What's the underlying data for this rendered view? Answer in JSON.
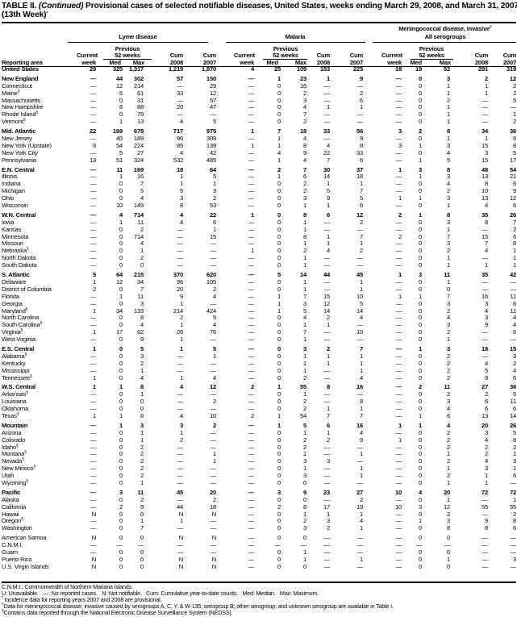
{
  "title": {
    "label": "TABLE II.",
    "continued": "(Continued)",
    "text": "Provisional cases of selected notifiable diseases, United States, weeks ending March 29, 2008, and March 31, 2007",
    "week": "(13th Week)",
    "week_mark": "*"
  },
  "header": {
    "diseases": {
      "lyme": "Lyme disease",
      "malaria": "Malaria",
      "mening_line1": "Meningococcal disease, invasive",
      "mening_mark": "†",
      "mening_line2": "All serogroups"
    },
    "previous": "Previous",
    "weeks52": "52 weeks",
    "current": "Current",
    "week": "week",
    "med": "Med",
    "max": "Max",
    "cum": "Cum",
    "y2008": "2008",
    "y2007": "2007",
    "reporting_area": "Reporting area"
  },
  "rows": [
    {
      "area": "United States",
      "bold": true,
      "v": [
        "29",
        "325",
        "1,317",
        "1,219",
        "1,870",
        "4",
        "25",
        "109",
        "153",
        "225",
        "18",
        "19",
        "52",
        "291",
        "319"
      ]
    },
    {
      "area": "New England",
      "bold": true,
      "gap": true,
      "v": [
        "—",
        "44",
        "302",
        "57",
        "150",
        "—",
        "1",
        "23",
        "1",
        "9",
        "—",
        "0",
        "3",
        "2",
        "12"
      ]
    },
    {
      "area": "Connecticut",
      "v": [
        "—",
        "12",
        "214",
        "—",
        "29",
        "—",
        "0",
        "16",
        "—",
        "—",
        "—",
        "0",
        "1",
        "1",
        "2"
      ]
    },
    {
      "area": "Maine",
      "fn": "§",
      "v": [
        "—",
        "6",
        "61",
        "33",
        "12",
        "—",
        "0",
        "2",
        "—",
        "2",
        "—",
        "0",
        "1",
        "1",
        "2"
      ]
    },
    {
      "area": "Massachusetts",
      "v": [
        "—",
        "0",
        "31",
        "—",
        "57",
        "—",
        "0",
        "3",
        "—",
        "6",
        "—",
        "0",
        "2",
        "—",
        "5"
      ]
    },
    {
      "area": "New Hampshire",
      "v": [
        "—",
        "8",
        "88",
        "20",
        "47",
        "—",
        "0",
        "4",
        "1",
        "1",
        "—",
        "0",
        "1",
        "—",
        "—"
      ]
    },
    {
      "area": "Rhode Island",
      "fn": "§",
      "v": [
        "—",
        "0",
        "79",
        "—",
        "—",
        "—",
        "0",
        "7",
        "—",
        "—",
        "—",
        "0",
        "1",
        "—",
        "1"
      ]
    },
    {
      "area": "Vermont",
      "fn": "§",
      "v": [
        "—",
        "1",
        "13",
        "4",
        "5",
        "—",
        "0",
        "2",
        "—",
        "—",
        "—",
        "0",
        "1",
        "—",
        "2"
      ]
    },
    {
      "area": "Mid. Atlantic",
      "bold": true,
      "gap": true,
      "v": [
        "22",
        "169",
        "678",
        "717",
        "975",
        "1",
        "7",
        "18",
        "33",
        "56",
        "3",
        "2",
        "8",
        "34",
        "36"
      ]
    },
    {
      "area": "New Jersey",
      "v": [
        "—",
        "40",
        "189",
        "96",
        "309",
        "—",
        "1",
        "4",
        "—",
        "9",
        "—",
        "0",
        "1",
        "1",
        "6"
      ]
    },
    {
      "area": "New York (Upstate)",
      "v": [
        "9",
        "54",
        "224",
        "85",
        "139",
        "1",
        "1",
        "8",
        "4",
        "8",
        "3",
        "1",
        "3",
        "15",
        "8"
      ]
    },
    {
      "area": "New York City",
      "v": [
        "—",
        "5",
        "27",
        "4",
        "42",
        "—",
        "4",
        "9",
        "22",
        "33",
        "—",
        "0",
        "4",
        "3",
        "5"
      ]
    },
    {
      "area": "Pennsylvania",
      "v": [
        "13",
        "51",
        "324",
        "532",
        "485",
        "—",
        "1",
        "4",
        "7",
        "6",
        "—",
        "1",
        "5",
        "15",
        "17"
      ]
    },
    {
      "area": "E.N. Central",
      "bold": true,
      "gap": true,
      "v": [
        "—",
        "11",
        "169",
        "18",
        "64",
        "—",
        "2",
        "7",
        "30",
        "37",
        "1",
        "3",
        "8",
        "48",
        "54"
      ]
    },
    {
      "area": "Illinois",
      "v": [
        "—",
        "1",
        "16",
        "1",
        "5",
        "—",
        "1",
        "6",
        "14",
        "18",
        "—",
        "1",
        "3",
        "13",
        "21"
      ]
    },
    {
      "area": "Indiana",
      "v": [
        "—",
        "0",
        "7",
        "1",
        "1",
        "—",
        "0",
        "2",
        "1",
        "1",
        "—",
        "0",
        "4",
        "8",
        "6"
      ]
    },
    {
      "area": "Michigan",
      "v": [
        "—",
        "0",
        "5",
        "5",
        "3",
        "—",
        "0",
        "2",
        "5",
        "7",
        "—",
        "0",
        "2",
        "10",
        "9"
      ]
    },
    {
      "area": "Ohio",
      "v": [
        "—",
        "0",
        "4",
        "3",
        "2",
        "—",
        "0",
        "3",
        "9",
        "5",
        "1",
        "1",
        "3",
        "13",
        "12"
      ]
    },
    {
      "area": "Wisconsin",
      "v": [
        "—",
        "10",
        "149",
        "8",
        "53",
        "—",
        "0",
        "1",
        "1",
        "6",
        "—",
        "0",
        "1",
        "4",
        "6"
      ]
    },
    {
      "area": "W.N. Central",
      "bold": true,
      "gap": true,
      "v": [
        "—",
        "4",
        "714",
        "4",
        "22",
        "1",
        "0",
        "8",
        "6",
        "12",
        "2",
        "1",
        "8",
        "35",
        "26"
      ]
    },
    {
      "area": "Iowa",
      "v": [
        "—",
        "1",
        "11",
        "4",
        "6",
        "—",
        "0",
        "1",
        "—",
        "2",
        "—",
        "0",
        "3",
        "8",
        "7"
      ]
    },
    {
      "area": "Kansas",
      "v": [
        "—",
        "0",
        "2",
        "—",
        "1",
        "—",
        "0",
        "1",
        "—",
        "—",
        "—",
        "0",
        "1",
        "—",
        "2"
      ]
    },
    {
      "area": "Minnesota",
      "v": [
        "—",
        "0",
        "714",
        "—",
        "15",
        "—",
        "0",
        "8",
        "1",
        "7",
        "2",
        "0",
        "7",
        "15",
        "6"
      ]
    },
    {
      "area": "Missouri",
      "v": [
        "—",
        "0",
        "4",
        "—",
        "—",
        "—",
        "0",
        "1",
        "1",
        "1",
        "—",
        "0",
        "3",
        "7",
        "8"
      ]
    },
    {
      "area": "Nebraska",
      "fn": "§",
      "v": [
        "—",
        "0",
        "1",
        "—",
        "—",
        "1",
        "0",
        "2",
        "4",
        "2",
        "—",
        "0",
        "2",
        "4",
        "1"
      ]
    },
    {
      "area": "North Dakota",
      "v": [
        "—",
        "0",
        "2",
        "—",
        "—",
        "—",
        "0",
        "1",
        "—",
        "—",
        "—",
        "0",
        "1",
        "—",
        "1"
      ]
    },
    {
      "area": "South Dakota",
      "v": [
        "—",
        "0",
        "0",
        "—",
        "—",
        "—",
        "0",
        "1",
        "—",
        "—",
        "—",
        "0",
        "1",
        "1",
        "1"
      ]
    },
    {
      "area": "S. Atlantic",
      "bold": true,
      "gap": true,
      "v": [
        "5",
        "64",
        "215",
        "370",
        "620",
        "—",
        "5",
        "14",
        "44",
        "45",
        "1",
        "3",
        "11",
        "35",
        "42"
      ]
    },
    {
      "area": "Delaware",
      "v": [
        "1",
        "12",
        "34",
        "96",
        "105",
        "—",
        "0",
        "1",
        "—",
        "1",
        "—",
        "0",
        "1",
        "—",
        "—"
      ]
    },
    {
      "area": "District of Columbia",
      "v": [
        "2",
        "0",
        "7",
        "20",
        "2",
        "—",
        "0",
        "1",
        "—",
        "1",
        "—",
        "0",
        "0",
        "—",
        "—"
      ]
    },
    {
      "area": "Florida",
      "v": [
        "—",
        "1",
        "11",
        "9",
        "4",
        "—",
        "1",
        "7",
        "15",
        "10",
        "1",
        "1",
        "7",
        "16",
        "11"
      ]
    },
    {
      "area": "Georgia",
      "v": [
        "—",
        "0",
        "3",
        "1",
        "—",
        "—",
        "1",
        "3",
        "12",
        "5",
        "—",
        "0",
        "3",
        "3",
        "6"
      ]
    },
    {
      "area": "Maryland",
      "fn": "§",
      "v": [
        "1",
        "34",
        "133",
        "214",
        "424",
        "—",
        "1",
        "5",
        "14",
        "14",
        "—",
        "0",
        "2",
        "4",
        "11"
      ]
    },
    {
      "area": "North Carolina",
      "v": [
        "—",
        "0",
        "8",
        "2",
        "5",
        "—",
        "0",
        "4",
        "2",
        "4",
        "—",
        "0",
        "4",
        "3",
        "4"
      ]
    },
    {
      "area": "South Carolina",
      "fn": "§",
      "v": [
        "—",
        "0",
        "4",
        "1",
        "4",
        "—",
        "0",
        "1",
        "1",
        "—",
        "—",
        "0",
        "3",
        "9",
        "4"
      ]
    },
    {
      "area": "Virginia",
      "fn": "§",
      "v": [
        "1",
        "17",
        "62",
        "26",
        "76",
        "—",
        "0",
        "7",
        "—",
        "10",
        "—",
        "0",
        "2",
        "—",
        "6"
      ]
    },
    {
      "area": "West Virginia",
      "v": [
        "—",
        "0",
        "9",
        "1",
        "—",
        "—",
        "0",
        "1",
        "—",
        "—",
        "—",
        "0",
        "1",
        "—",
        "—"
      ]
    },
    {
      "area": "E.S. Central",
      "bold": true,
      "gap": true,
      "v": [
        "1",
        "0",
        "5",
        "1",
        "5",
        "—",
        "0",
        "3",
        "2",
        "7",
        "—",
        "1",
        "3",
        "18",
        "15"
      ]
    },
    {
      "area": "Alabama",
      "fn": "§",
      "v": [
        "—",
        "0",
        "3",
        "—",
        "1",
        "—",
        "0",
        "1",
        "1",
        "1",
        "—",
        "0",
        "2",
        "—",
        "3"
      ]
    },
    {
      "area": "Kentucky",
      "v": [
        "—",
        "0",
        "2",
        "—",
        "—",
        "—",
        "0",
        "1",
        "1",
        "1",
        "—",
        "0",
        "2",
        "4",
        "2"
      ]
    },
    {
      "area": "Mississippi",
      "v": [
        "—",
        "0",
        "1",
        "—",
        "—",
        "—",
        "0",
        "1",
        "—",
        "1",
        "—",
        "0",
        "2",
        "5",
        "4"
      ]
    },
    {
      "area": "Tennessee",
      "fn": "§",
      "v": [
        "1",
        "0",
        "4",
        "1",
        "4",
        "—",
        "0",
        "2",
        "—",
        "4",
        "—",
        "0",
        "2",
        "9",
        "6"
      ]
    },
    {
      "area": "W.S. Central",
      "bold": true,
      "gap": true,
      "v": [
        "1",
        "1",
        "8",
        "4",
        "12",
        "2",
        "1",
        "55",
        "8",
        "16",
        "—",
        "2",
        "11",
        "27",
        "36"
      ]
    },
    {
      "area": "Arkansas",
      "fn": "§",
      "v": [
        "—",
        "0",
        "1",
        "—",
        "—",
        "—",
        "0",
        "1",
        "—",
        "—",
        "—",
        "0",
        "2",
        "2",
        "5"
      ]
    },
    {
      "area": "Louisiana",
      "v": [
        "—",
        "0",
        "0",
        "—",
        "2",
        "—",
        "0",
        "2",
        "—",
        "8",
        "—",
        "0",
        "3",
        "6",
        "11"
      ]
    },
    {
      "area": "Oklahoma",
      "v": [
        "—",
        "0",
        "0",
        "—",
        "—",
        "—",
        "0",
        "2",
        "1",
        "1",
        "—",
        "0",
        "4",
        "6",
        "6"
      ]
    },
    {
      "area": "Texas",
      "fn": "§",
      "v": [
        "1",
        "1",
        "8",
        "4",
        "10",
        "2",
        "1",
        "54",
        "7",
        "7",
        "—",
        "1",
        "6",
        "13",
        "14"
      ]
    },
    {
      "area": "Mountain",
      "bold": true,
      "gap": true,
      "v": [
        "—",
        "1",
        "3",
        "3",
        "2",
        "—",
        "1",
        "5",
        "6",
        "16",
        "1",
        "1",
        "4",
        "20",
        "26"
      ]
    },
    {
      "area": "Arizona",
      "v": [
        "—",
        "0",
        "1",
        "1",
        "—",
        "—",
        "0",
        "1",
        "1",
        "4",
        "—",
        "0",
        "2",
        "3",
        "5"
      ]
    },
    {
      "area": "Colorado",
      "v": [
        "—",
        "0",
        "1",
        "2",
        "—",
        "—",
        "0",
        "2",
        "2",
        "9",
        "1",
        "0",
        "2",
        "4",
        "8"
      ]
    },
    {
      "area": "Idaho",
      "fn": "§",
      "v": [
        "—",
        "0",
        "2",
        "—",
        "—",
        "—",
        "0",
        "2",
        "—",
        "—",
        "—",
        "0",
        "2",
        "2",
        "2"
      ]
    },
    {
      "area": "Montana",
      "fn": "§",
      "v": [
        "—",
        "0",
        "2",
        "—",
        "1",
        "—",
        "0",
        "1",
        "—",
        "1",
        "—",
        "0",
        "1",
        "2",
        "1"
      ]
    },
    {
      "area": "Nevada",
      "fn": "§",
      "v": [
        "—",
        "0",
        "2",
        "—",
        "1",
        "—",
        "0",
        "3",
        "3",
        "—",
        "—",
        "0",
        "2",
        "4",
        "3"
      ]
    },
    {
      "area": "New Mexico",
      "fn": "§",
      "v": [
        "—",
        "0",
        "2",
        "—",
        "—",
        "—",
        "0",
        "1",
        "—",
        "1",
        "—",
        "0",
        "1",
        "3",
        "1"
      ]
    },
    {
      "area": "Utah",
      "v": [
        "—",
        "0",
        "2",
        "—",
        "—",
        "—",
        "0",
        "3",
        "—",
        "1",
        "—",
        "0",
        "2",
        "1",
        "6"
      ]
    },
    {
      "area": "Wyoming",
      "fn": "§",
      "v": [
        "—",
        "0",
        "1",
        "—",
        "—",
        "—",
        "0",
        "0",
        "—",
        "—",
        "—",
        "0",
        "1",
        "1",
        "—"
      ]
    },
    {
      "area": "Pacific",
      "bold": true,
      "gap": true,
      "v": [
        "—",
        "3",
        "11",
        "45",
        "20",
        "—",
        "3",
        "9",
        "23",
        "27",
        "10",
        "4",
        "20",
        "72",
        "72"
      ]
    },
    {
      "area": "Alaska",
      "v": [
        "—",
        "0",
        "2",
        "—",
        "2",
        "—",
        "0",
        "0",
        "—",
        "2",
        "—",
        "0",
        "1",
        "—",
        "1"
      ]
    },
    {
      "area": "California",
      "v": [
        "—",
        "2",
        "9",
        "44",
        "18",
        "—",
        "2",
        "8",
        "17",
        "19",
        "10",
        "3",
        "12",
        "55",
        "55"
      ]
    },
    {
      "area": "Hawaii",
      "v": [
        "N",
        "0",
        "0",
        "N",
        "N",
        "—",
        "0",
        "1",
        "1",
        "1",
        "—",
        "0",
        "2",
        "—",
        "2"
      ]
    },
    {
      "area": "Oregon",
      "fn": "§",
      "v": [
        "—",
        "0",
        "1",
        "1",
        "—",
        "—",
        "0",
        "2",
        "3",
        "4",
        "—",
        "1",
        "3",
        "9",
        "8"
      ]
    },
    {
      "area": "Washington",
      "v": [
        "—",
        "0",
        "7",
        "—",
        "—",
        "—",
        "0",
        "3",
        "2",
        "1",
        "—",
        "0",
        "8",
        "8",
        "6"
      ]
    },
    {
      "area": "American Samoa",
      "gap": true,
      "v": [
        "N",
        "0",
        "0",
        "N",
        "N",
        "—",
        "0",
        "0",
        "—",
        "—",
        "—",
        "0",
        "0",
        "—",
        "—"
      ]
    },
    {
      "area": "C.N.M.I.",
      "v": [
        "—",
        "—",
        "—",
        "—",
        "—",
        "—",
        "—",
        "—",
        "—",
        "—",
        "—",
        "—",
        "—",
        "—",
        "—"
      ]
    },
    {
      "area": "Guam",
      "v": [
        "—",
        "0",
        "0",
        "—",
        "—",
        "—",
        "0",
        "1",
        "—",
        "—",
        "—",
        "0",
        "0",
        "—",
        "—"
      ]
    },
    {
      "area": "Puerto Rico",
      "v": [
        "N",
        "0",
        "0",
        "N",
        "N",
        "—",
        "0",
        "1",
        "—",
        "1",
        "—",
        "0",
        "1",
        "—",
        "3"
      ]
    },
    {
      "area": "U.S. Virgin Islands",
      "v": [
        "N",
        "0",
        "0",
        "N",
        "N",
        "—",
        "0",
        "0",
        "—",
        "—",
        "—",
        "0",
        "0",
        "—",
        "—"
      ]
    }
  ],
  "footnotes": {
    "cnmi": "C.N.M.I.: Commonwealth of Northern Mariana Islands.",
    "legend": "U: Unavailable.   —: No reported cases.   N: Not notifiable.   Cum: Cumulative year-to-date counts.   Med: Median.   Max: Maximum.",
    "star_mark": "*",
    "star": "Incidence data for reporting years 2007 and 2008 are provisional.",
    "dagger_mark": "†",
    "dagger": "Data for meningococcal disease, invasive caused by serogroups A, C, Y, & W-135; serogroup B; other serogroup; and unknown serogroup are available in Table I.",
    "section_mark": "§",
    "section": "Contains data reported through the National Electronic Disease Surveillance System (NEDSS)."
  }
}
